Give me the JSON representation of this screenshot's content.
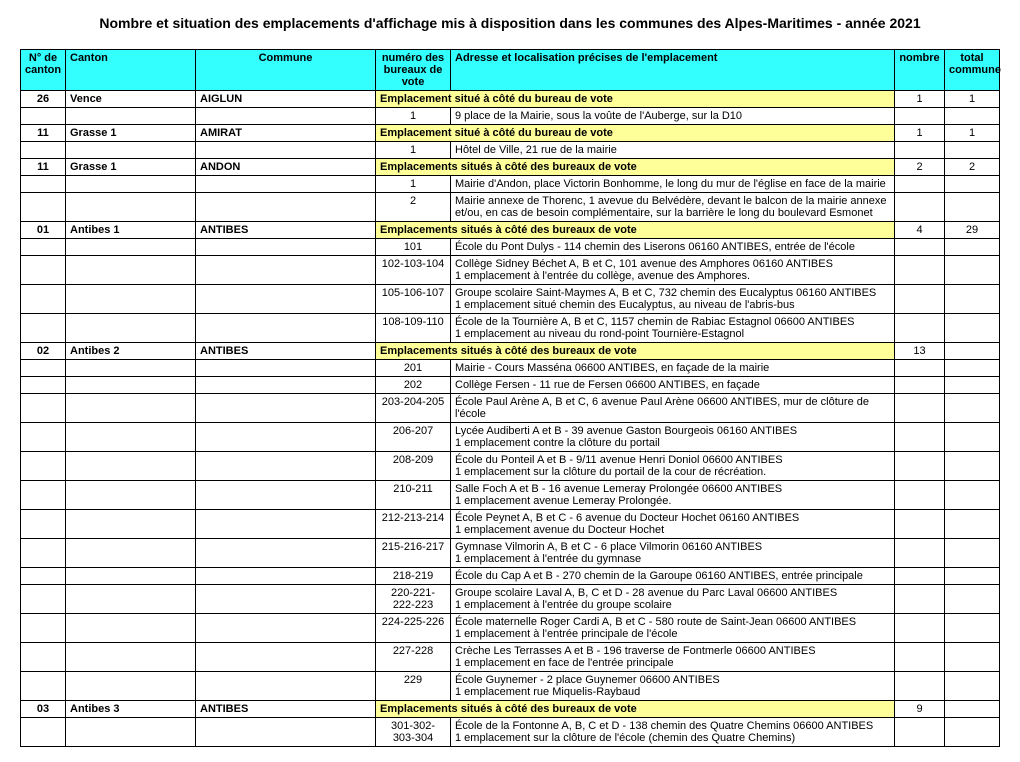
{
  "title": "Nombre et situation des emplacements d'affichage mis à disposition dans les communes des Alpes-Maritimes - année 2021",
  "headers": {
    "canton_no": "N° de canton",
    "canton": "Canton",
    "commune": "Commune",
    "bureau": "numéro des bureaux de vote",
    "address": "Adresse et localisation précises de l'emplacement",
    "nombre": "nombre",
    "total": "total commune"
  },
  "colors": {
    "header_bg": "#33ffff",
    "summary_bg": "#ffff99"
  },
  "rows": [
    {
      "type": "summary",
      "canton_no": "26",
      "canton": "Vence",
      "commune": "AIGLUN",
      "address": "Emplacement situé à côté du bureau de vote",
      "nombre": "1",
      "total": "1"
    },
    {
      "type": "detail",
      "bureau": "1",
      "address": "9 place de la Mairie, sous la voûte de l'Auberge, sur la D10"
    },
    {
      "type": "summary",
      "canton_no": "11",
      "canton": "Grasse 1",
      "commune": "AMIRAT",
      "address": "Emplacement situé à côté du bureau de vote",
      "nombre": "1",
      "total": "1"
    },
    {
      "type": "detail",
      "bureau": "1",
      "address": "Hôtel de Ville, 21 rue de la mairie"
    },
    {
      "type": "summary",
      "canton_no": "11",
      "canton": "Grasse 1",
      "commune": "ANDON",
      "address": "Emplacements situés à côté des bureaux de vote",
      "nombre": "2",
      "total": "2"
    },
    {
      "type": "detail",
      "bureau": "1",
      "address": "Mairie d'Andon, place Victorin Bonhomme, le long du mur de l'église en face de la mairie"
    },
    {
      "type": "detail",
      "bureau": "2",
      "address": "Mairie annexe de Thorenc, 1 avevue du Belvédère, devant le balcon de la mairie annexe et/ou, en cas de besoin complémentaire, sur la barrière le long du boulevard Esmonet"
    },
    {
      "type": "summary",
      "canton_no": "01",
      "canton": "Antibes 1",
      "commune": "ANTIBES",
      "address": "Emplacements situés à côté des bureaux de vote",
      "nombre": "4",
      "total": "29"
    },
    {
      "type": "detail",
      "bureau": "101",
      "address": "École du Pont Dulys  - 114 chemin des Liserons 06160 ANTIBES, entrée de l'école"
    },
    {
      "type": "detail",
      "bureau": "102-103-104",
      "address": "Collège Sidney Béchet A, B et C, 101 avenue des Amphores 06160 ANTIBES\n1 emplacement à l'entrée du collège, avenue des Amphores."
    },
    {
      "type": "detail",
      "bureau": "105-106-107",
      "address": "Groupe scolaire Saint-Maymes A, B et C, 732 chemin des Eucalyptus 06160 ANTIBES\n1 emplacement situé chemin des Eucalyptus, au niveau de l'abris-bus"
    },
    {
      "type": "detail",
      "bureau": "108-109-110",
      "address": "École de la Tournière A, B et C, 1157 chemin de Rabiac Estagnol 06600 ANTIBES\n1 emplacement au niveau du rond-point Tournière-Estagnol"
    },
    {
      "type": "summary",
      "canton_no": "02",
      "canton": "Antibes 2",
      "commune": "ANTIBES",
      "address": "Emplacements situés à côté des bureaux de vote",
      "nombre": "13",
      "total": ""
    },
    {
      "type": "detail",
      "bureau": "201",
      "address": "Mairie - Cours Masséna 06600 ANTIBES, en façade de la mairie"
    },
    {
      "type": "detail",
      "bureau": "202",
      "address": "Collège Fersen - 11 rue de Fersen 06600 ANTIBES, en façade"
    },
    {
      "type": "detail",
      "bureau": "203-204-205",
      "address": "École Paul Arène A, B et C, 6 avenue Paul Arène 06600 ANTIBES, mur de clôture de l'école"
    },
    {
      "type": "detail",
      "bureau": "206-207",
      "address": "Lycée Audiberti A et B - 39 avenue Gaston Bourgeois 06160 ANTIBES\n1 emplacement contre la clôture du portail"
    },
    {
      "type": "detail",
      "bureau": "208-209",
      "address": "École du Ponteil A et B - 9/11 avenue Henri Doniol 06600 ANTIBES\n1 emplacement sur la clôture du portail de la cour de récréation."
    },
    {
      "type": "detail",
      "bureau": "210-211",
      "address": "Salle Foch A et B - 16 avenue Lemeray Prolongée 06600 ANTIBES\n1 emplacement avenue Lemeray Prolongée."
    },
    {
      "type": "detail",
      "bureau": "212-213-214",
      "address": "École Peynet A, B et C - 6 avenue du Docteur Hochet 06160 ANTIBES\n1 emplacement avenue du Docteur Hochet"
    },
    {
      "type": "detail",
      "bureau": "215-216-217",
      "address": "Gymnase Vilmorin A, B et C - 6 place Vilmorin 06160 ANTIBES\n1 emplacement à l'entrée du gymnase"
    },
    {
      "type": "detail",
      "bureau": "218-219",
      "address": "École du Cap A et B - 270 chemin de la Garoupe 06160 ANTIBES, entrée principale"
    },
    {
      "type": "detail",
      "bureau": "220-221-222-223",
      "address": "Groupe scolaire Laval A, B, C et D - 28 avenue du Parc Laval 06600 ANTIBES\n1 emplacement à l'entrée du groupe scolaire"
    },
    {
      "type": "detail",
      "bureau": "224-225-226",
      "address": "École maternelle Roger Cardi A, B et C  - 580 route de Saint-Jean 06600 ANTIBES\n1 emplacement à l'entrée principale de l'école"
    },
    {
      "type": "detail",
      "bureau": "227-228",
      "address": "Crèche Les Terrasses A et B - 196 traverse de Fontmerle 06600 ANTIBES\n1 emplacement en face de l'entrée principale"
    },
    {
      "type": "detail",
      "bureau": "229",
      "address": "École Guynemer - 2 place Guynemer 06600 ANTIBES\n1 emplacement rue Miquelis-Raybaud"
    },
    {
      "type": "summary",
      "canton_no": "03",
      "canton": "Antibes 3",
      "commune": "ANTIBES",
      "address": "Emplacements situés à côté des bureaux de vote",
      "nombre": "9",
      "total": ""
    },
    {
      "type": "detail",
      "bureau": "301-302-303-304",
      "address": "École de la Fontonne A, B, C et D - 138 chemin des Quatre Chemins 06600 ANTIBES\n1 emplacement sur la clôture de l'école (chemin des Quatre Chemins)"
    }
  ]
}
